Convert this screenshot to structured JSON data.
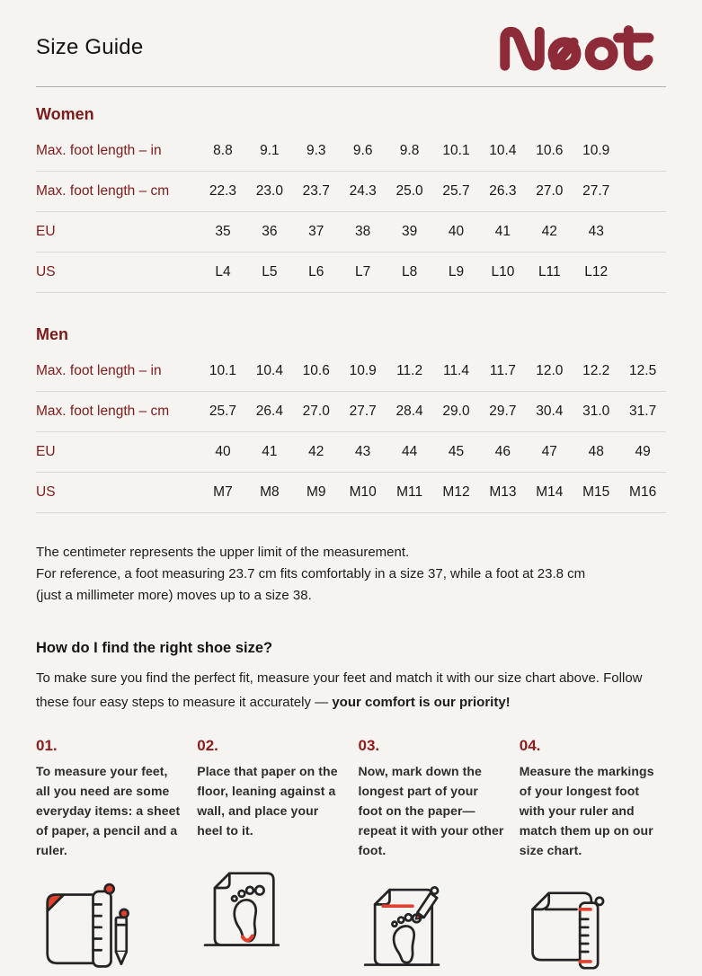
{
  "page": {
    "title": "Size Guide",
    "brand": "Naot",
    "colors": {
      "background": "#f6f4f1",
      "text": "#1c1c1c",
      "heading_red": "#7d1a1b",
      "brand_maroon": "#8e2b38",
      "accent_red": "#e2402f",
      "divider": "#dcd7d2"
    }
  },
  "sections": {
    "women": {
      "heading": "Women",
      "rows": [
        {
          "label": "Max. foot length – in",
          "values": [
            "8.8",
            "9.1",
            "9.3",
            "9.6",
            "9.8",
            "10.1",
            "10.4",
            "10.6",
            "10.9"
          ]
        },
        {
          "label": "Max. foot length – cm",
          "values": [
            "22.3",
            "23.0",
            "23.7",
            "24.3",
            "25.0",
            "25.7",
            "26.3",
            "27.0",
            "27.7"
          ]
        },
        {
          "label": "EU",
          "values": [
            "35",
            "36",
            "37",
            "38",
            "39",
            "40",
            "41",
            "42",
            "43"
          ]
        },
        {
          "label": "US",
          "values": [
            "L4",
            "L5",
            "L6",
            "L7",
            "L8",
            "L9",
            "L10",
            "L11",
            "L12"
          ]
        }
      ]
    },
    "men": {
      "heading": "Men",
      "rows": [
        {
          "label": "Max. foot length – in",
          "values": [
            "10.1",
            "10.4",
            "10.6",
            "10.9",
            "11.2",
            "11.4",
            "11.7",
            "12.0",
            "12.2",
            "12.5"
          ]
        },
        {
          "label": "Max. foot length – cm",
          "values": [
            "25.7",
            "26.4",
            "27.0",
            "27.7",
            "28.4",
            "29.0",
            "29.7",
            "30.4",
            "31.0",
            "31.7"
          ]
        },
        {
          "label": "EU",
          "values": [
            "40",
            "41",
            "42",
            "43",
            "44",
            "45",
            "46",
            "47",
            "48",
            "49"
          ]
        },
        {
          "label": "US",
          "values": [
            "M7",
            "M8",
            "M9",
            "M10",
            "M11",
            "M12",
            "M13",
            "M14",
            "M15",
            "M16"
          ]
        }
      ]
    }
  },
  "note": "The centimeter represents the upper limit of the measurement.\nFor reference, a foot measuring 23.7 cm fits comfortably in a size 37, while a foot at 23.8 cm\n(just a millimeter more) moves up to a size 38.",
  "how_to": {
    "heading": "How do I find the right shoe size?",
    "intro_text": "To make sure you find the perfect fit, measure your feet and match it with our size chart above. Follow these four easy steps to measure it accurately — ",
    "intro_bold": "your comfort is our priority!"
  },
  "steps": [
    {
      "number": "01.",
      "text": "To measure your feet, all you need are some everyday items: a sheet of paper, a pencil and a ruler.",
      "icon": "paper-ruler-pencil-icon"
    },
    {
      "number": "02.",
      "text": "Place that paper on the floor, leaning against a wall, and place your heel to it.",
      "icon": "footprint-on-paper-icon"
    },
    {
      "number": "03.",
      "text": "Now, mark down the longest part of your foot on the paper—repeat it with your other foot.",
      "icon": "mark-foot-with-pencil-icon"
    },
    {
      "number": "04.",
      "text": "Measure the markings of your longest foot with your ruler and match them up on our size chart.",
      "icon": "ruler-measure-paper-icon"
    }
  ]
}
